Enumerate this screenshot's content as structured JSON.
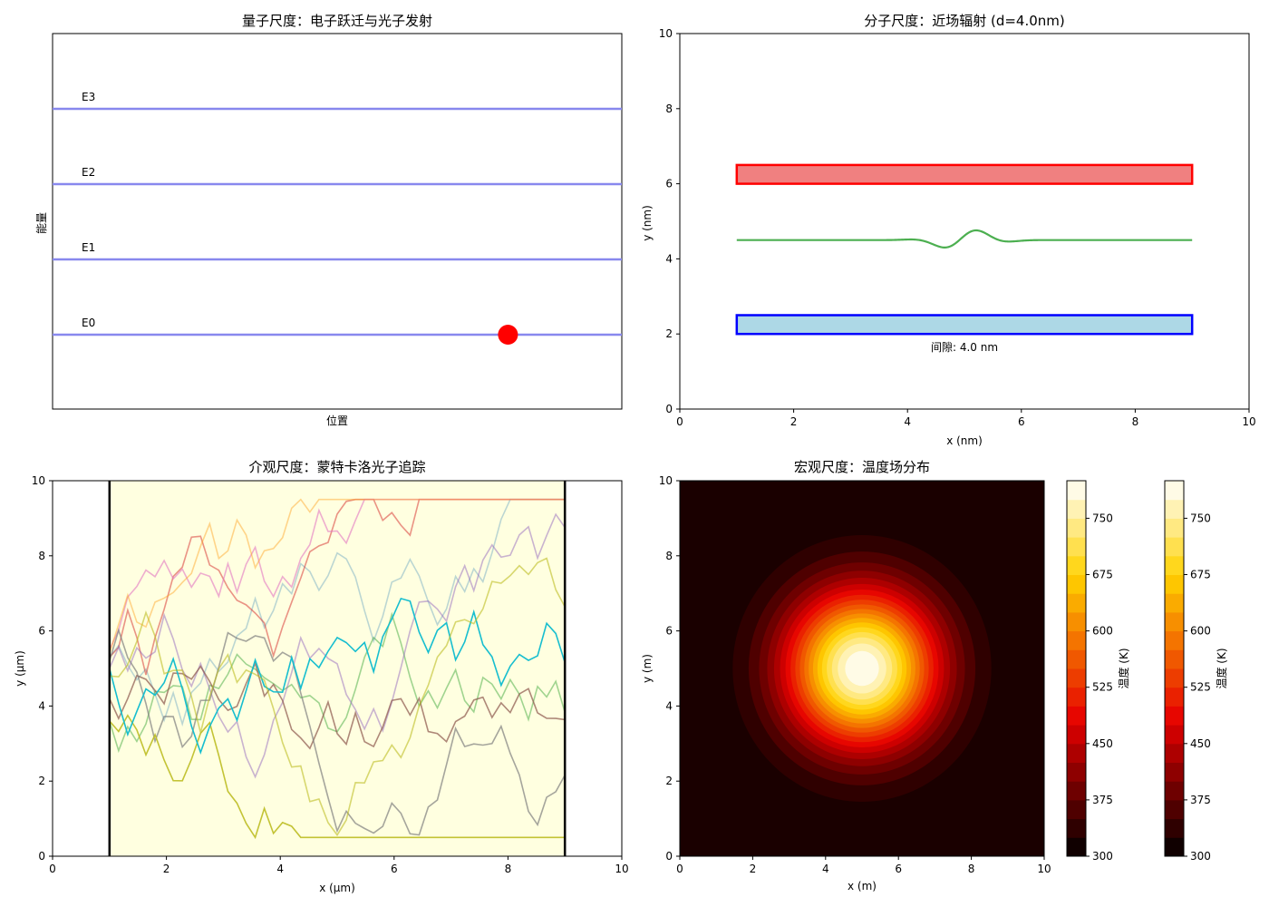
{
  "chart_data": [
    {
      "type": "line",
      "title": "量子尺度：电子跃迁与光子发射",
      "xlabel": "位置",
      "ylabel": "能量",
      "energy_levels": [
        {
          "name": "E0",
          "color": "#8888ee"
        },
        {
          "name": "E1",
          "color": "#8888ee"
        },
        {
          "name": "E2",
          "color": "#8888ee"
        },
        {
          "name": "E3",
          "color": "#8888ee"
        }
      ],
      "electron": {
        "x_fraction": 0.8,
        "level": "E0",
        "color": "#ff0000"
      }
    },
    {
      "type": "line",
      "title": "分子尺度：近场辐射 (d=4.0nm)",
      "xlabel": "x (nm)",
      "ylabel": "y (nm)",
      "xlim": [
        0,
        10
      ],
      "ylim": [
        0,
        10
      ],
      "xticks": [
        "0",
        "2",
        "4",
        "6",
        "8",
        "10"
      ],
      "yticks": [
        "0",
        "2",
        "4",
        "6",
        "8",
        "10"
      ],
      "hot_slab": {
        "x": [
          1,
          9
        ],
        "y": [
          6,
          6.5
        ],
        "fill": "#f08080",
        "edge": "#ff0000"
      },
      "cold_slab": {
        "x": [
          1,
          9
        ],
        "y": [
          2,
          2.5
        ],
        "fill": "#add8e6",
        "edge": "#0000ff"
      },
      "wave": {
        "color": "#4caf50",
        "baseline": 4.5,
        "center": 5.0,
        "amplitude": 0.3,
        "width": 0.6,
        "freq": 4.5,
        "x": [
          1,
          9
        ]
      },
      "gap_label": "间隙: 4.0 nm"
    },
    {
      "type": "line",
      "title": "介观尺度：蒙特卡洛光子追踪",
      "xlabel": "x (μm)",
      "ylabel": "y (μm)",
      "xlim": [
        0,
        10
      ],
      "ylim": [
        0,
        10
      ],
      "xticks": [
        "0",
        "2",
        "4",
        "6",
        "8",
        "10"
      ],
      "yticks": [
        "0",
        "2",
        "4",
        "6",
        "8",
        "10"
      ],
      "medium": {
        "x": [
          1,
          9
        ],
        "fill": "#ffffe0"
      },
      "boundary_top": 9.5,
      "boundary_bottom": 0.5,
      "step": 0.1,
      "paths": [
        {
          "color": "#1f77b4",
          "alpha": 0.3,
          "start": 5.3,
          "seed": 11
        },
        {
          "color": "#2ca02c",
          "alpha": 0.45,
          "start": 3.6,
          "seed": 23
        },
        {
          "color": "#d62728",
          "alpha": 0.5,
          "start": 5.3,
          "seed": 37
        },
        {
          "color": "#9467bd",
          "alpha": 0.5,
          "start": 5.0,
          "seed": 41
        },
        {
          "color": "#8c564b",
          "alpha": 0.7,
          "start": 4.2,
          "seed": 53
        },
        {
          "color": "#e377c2",
          "alpha": 0.6,
          "start": 5.5,
          "seed": 67
        },
        {
          "color": "#7f7f7f",
          "alpha": 0.7,
          "start": 5.2,
          "seed": 71
        },
        {
          "color": "#bcbd22",
          "alpha": 0.9,
          "start": 3.6,
          "seed": 83
        },
        {
          "color": "#ff9f1c",
          "alpha": 0.45,
          "start": 5.4,
          "seed": 97
        },
        {
          "color": "#17becf",
          "alpha": 1.0,
          "start": 5.0,
          "seed": 101
        },
        {
          "color": "#bcbd22",
          "alpha": 0.6,
          "start": 4.8,
          "seed": 113
        }
      ]
    },
    {
      "type": "heatmap",
      "title": "宏观尺度：温度场分布",
      "xlabel": "x (m)",
      "ylabel": "y (m)",
      "xlim": [
        0,
        10
      ],
      "ylim": [
        0,
        10
      ],
      "xticks": [
        "0",
        "2",
        "4",
        "6",
        "8",
        "10"
      ],
      "yticks": [
        "0",
        "2",
        "4",
        "6",
        "8",
        "10"
      ],
      "center": [
        5,
        5
      ],
      "t_min": 300,
      "t_max": 800,
      "colorbar_label": "温度 (K)",
      "colorbar_ticks": [
        "300",
        "375",
        "450",
        "525",
        "600",
        "675",
        "750"
      ],
      "levels": 20
    }
  ]
}
